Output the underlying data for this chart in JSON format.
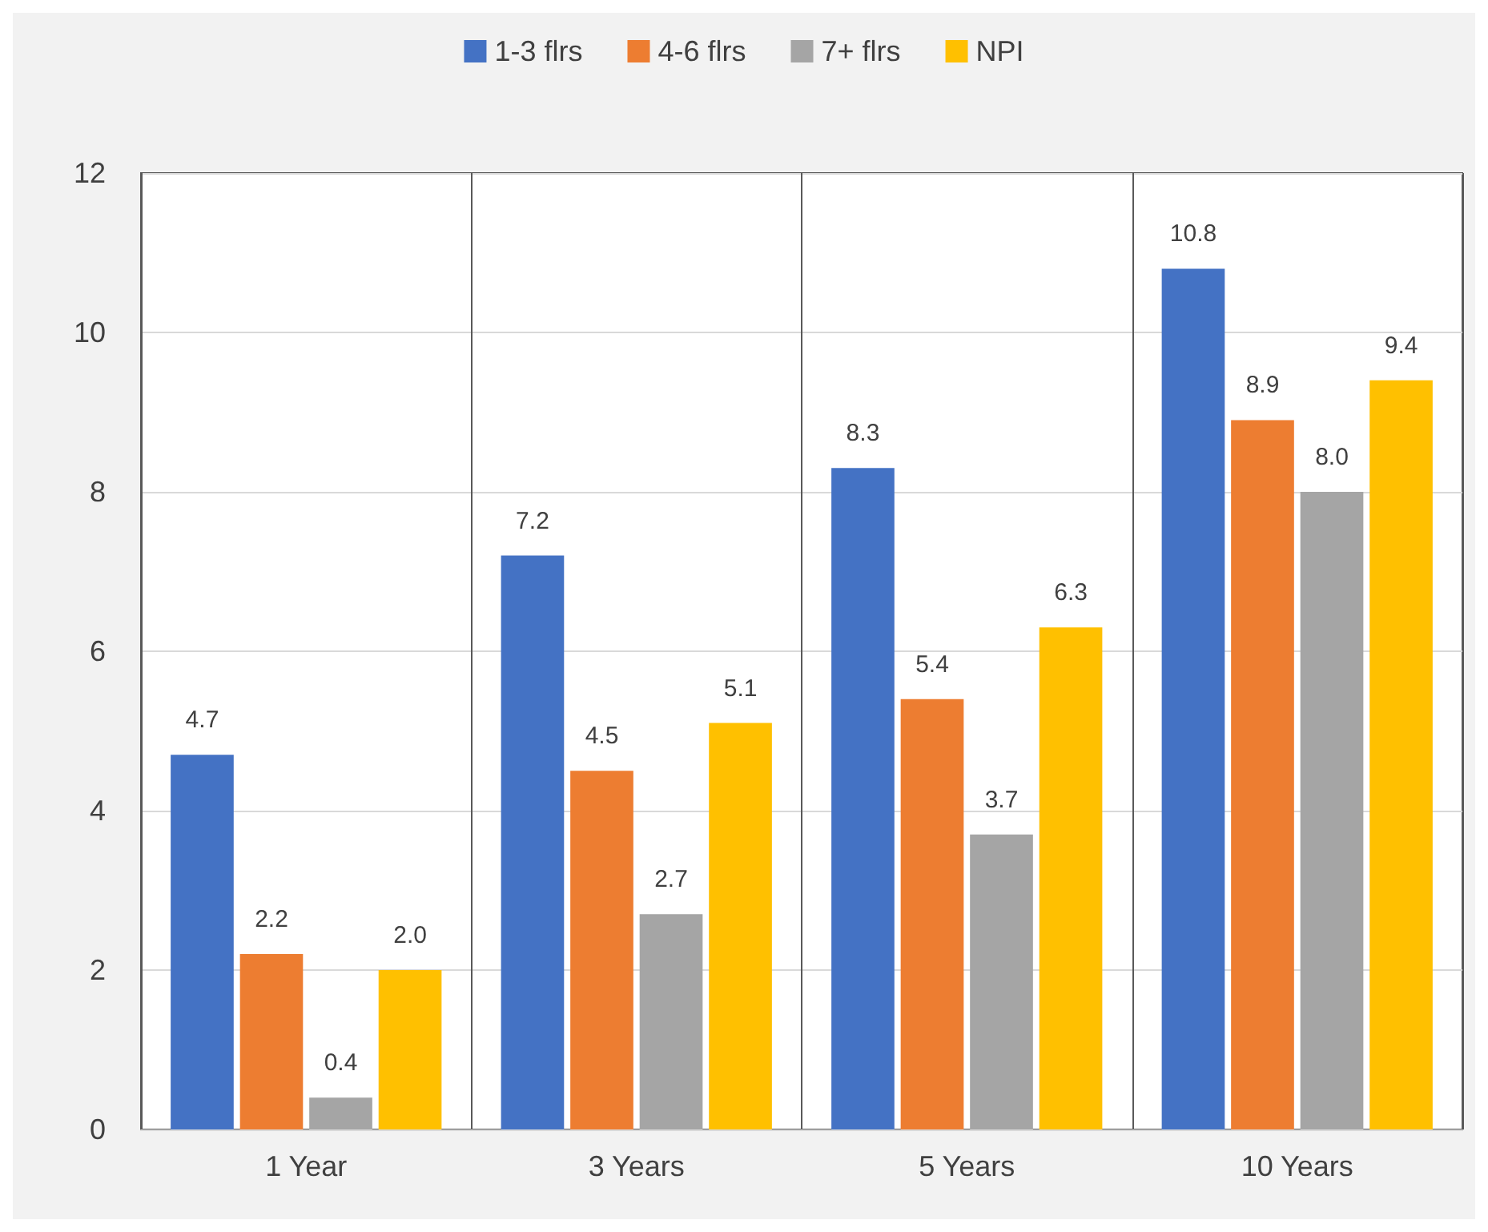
{
  "chart_data": {
    "type": "bar",
    "categories": [
      "1 Year",
      "3 Years",
      "5 Years",
      "10 Years"
    ],
    "series": [
      {
        "name": "1-3 flrs",
        "color": "#4472c4",
        "values": [
          4.7,
          7.2,
          8.3,
          10.8
        ],
        "value_labels": [
          "4.7",
          "7.2",
          "8.3",
          "10.8"
        ]
      },
      {
        "name": "4-6 flrs",
        "color": "#ed7d31",
        "values": [
          2.2,
          4.5,
          5.4,
          8.9
        ],
        "value_labels": [
          "2.2",
          "4.5",
          "5.4",
          "8.9"
        ]
      },
      {
        "name": "7+ flrs",
        "color": "#a5a5a5",
        "values": [
          0.4,
          2.7,
          3.7,
          8.0
        ],
        "value_labels": [
          "0.4",
          "2.7",
          "3.7",
          "8.0"
        ]
      },
      {
        "name": "NPI",
        "color": "#ffc000",
        "values": [
          2.0,
          5.1,
          6.3,
          9.4
        ],
        "value_labels": [
          "2.0",
          "5.1",
          "6.3",
          "9.4"
        ]
      }
    ],
    "ylim": [
      0,
      12
    ],
    "yticks": [
      0,
      2,
      4,
      6,
      8,
      10,
      12
    ],
    "grid": true,
    "legend": "top"
  }
}
